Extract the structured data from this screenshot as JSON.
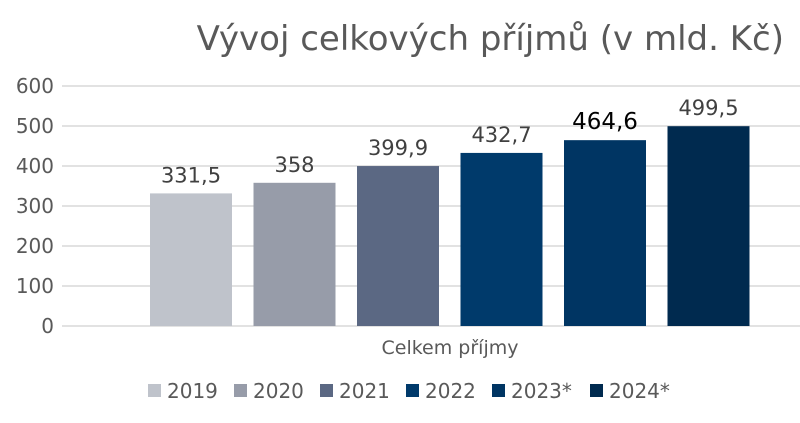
{
  "chart_data": {
    "type": "bar",
    "title": "Vývoj celkových příjmů (v mld. Kč)",
    "categories": [
      "Celkem příjmy"
    ],
    "series": [
      {
        "name": "2019",
        "values": [
          331.5
        ],
        "label": "331,5",
        "color": "#bfc3cb"
      },
      {
        "name": "2020",
        "values": [
          358
        ],
        "label": "358",
        "color": "#979ca9"
      },
      {
        "name": "2021",
        "values": [
          399.9
        ],
        "label": "399,9",
        "color": "#5b6883"
      },
      {
        "name": "2022",
        "values": [
          432.7
        ],
        "label": "432,7",
        "color": "#003a6b"
      },
      {
        "name": "2023*",
        "values": [
          464.6
        ],
        "label": "464,6",
        "color": "#003563"
      },
      {
        "name": "2024*",
        "values": [
          499.5
        ],
        "label": "499,5",
        "color": "#002a4f"
      }
    ],
    "ylim": [
      0,
      600
    ],
    "yticks": [
      "0",
      "100",
      "200",
      "300",
      "400",
      "500",
      "600"
    ],
    "grid": true,
    "legend": "bottom"
  }
}
